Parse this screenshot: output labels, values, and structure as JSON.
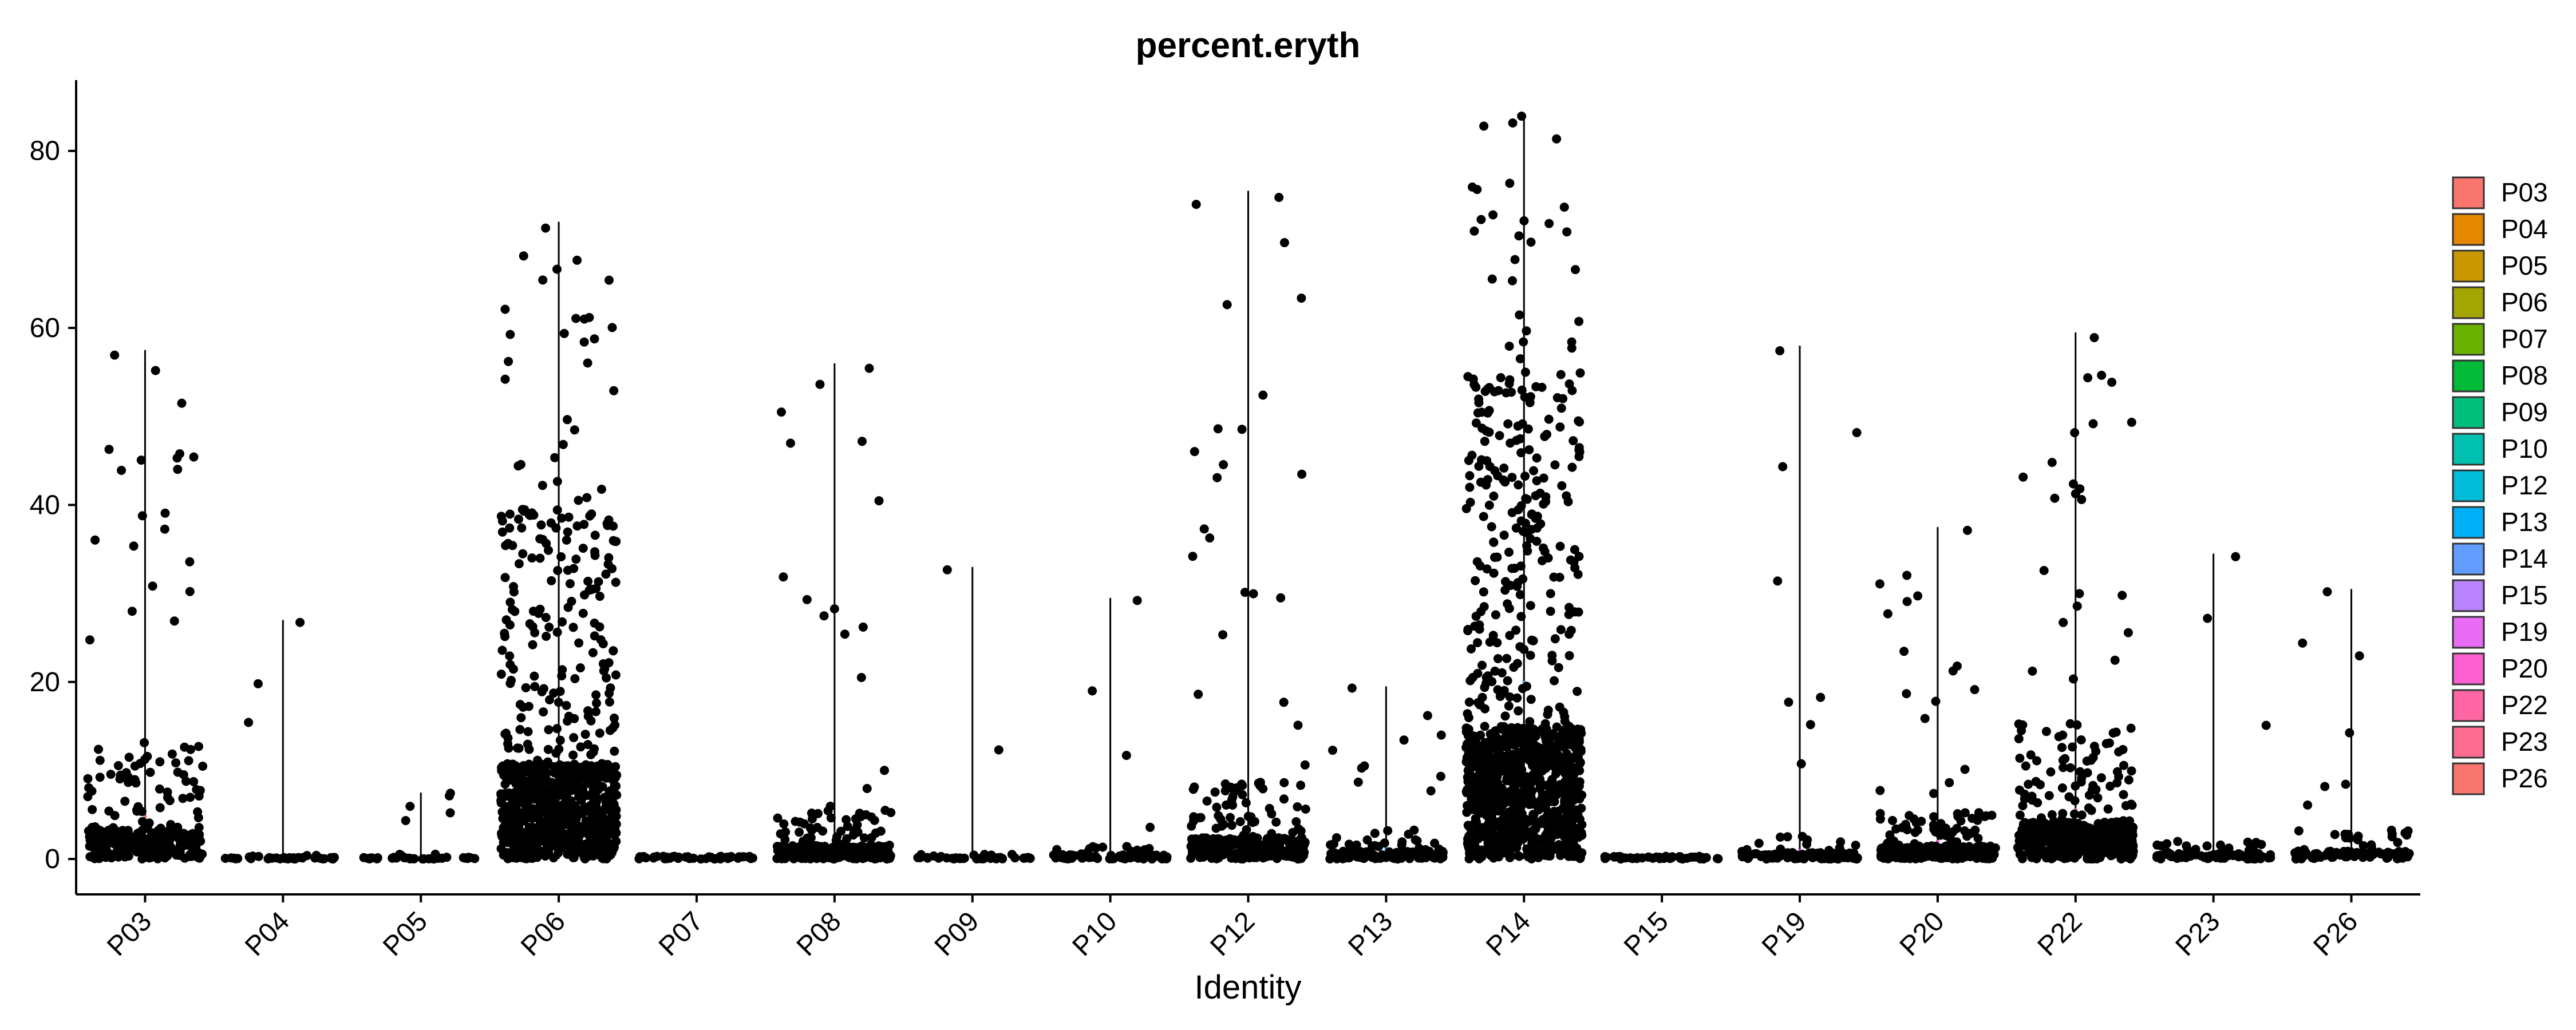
{
  "chart_data": {
    "type": "violin",
    "title": "percent.eryth",
    "xlabel": "Identity",
    "ylabel": "",
    "ylim": [
      -4,
      88
    ],
    "yticks": [
      0,
      20,
      40,
      60,
      80
    ],
    "legend_position": "right",
    "grid": false,
    "points": "jittered cells, black",
    "categories": [
      "P03",
      "P04",
      "P05",
      "P06",
      "P07",
      "P08",
      "P09",
      "P10",
      "P12",
      "P13",
      "P14",
      "P15",
      "P19",
      "P20",
      "P22",
      "P23",
      "P26"
    ],
    "colors": [
      "#F8766D",
      "#E58700",
      "#C99800",
      "#A3A500",
      "#6BB100",
      "#00BA38",
      "#00BF7D",
      "#00C0AF",
      "#00BCD8",
      "#00B0F6",
      "#619CFF",
      "#B983FF",
      "#E76BF3",
      "#FD61D1",
      "#FF67A4",
      "#FF6C91",
      "#F8766D"
    ],
    "legend_entries": [
      "P03",
      "P04",
      "P05",
      "P06",
      "P07",
      "P08",
      "P09",
      "P10",
      "P12",
      "P13",
      "P14",
      "P15",
      "P19",
      "P20",
      "P22",
      "P23",
      "P26"
    ],
    "legend_colors": [
      "#F8766D",
      "#E58700",
      "#C99800",
      "#A3A500",
      "#6BB100",
      "#00BA38",
      "#00BF7D",
      "#00C0AF",
      "#00BCD8",
      "#00B0F6",
      "#619CFF",
      "#B983FF",
      "#E76BF3",
      "#FD61D1",
      "#FF67A4",
      "#FF6C91",
      "#F8766D"
    ],
    "series_max": [
      57.5,
      27,
      7.5,
      72,
      0.3,
      56,
      33,
      29.5,
      75.5,
      19.5,
      84,
      0.3,
      58,
      37.5,
      59.5,
      34.5,
      30.5
    ],
    "series_density": [
      320,
      40,
      40,
      900,
      50,
      280,
      45,
      80,
      300,
      150,
      1100,
      50,
      130,
      300,
      450,
      90,
      120
    ],
    "series_spread": [
      6,
      0.3,
      0.3,
      18,
      0,
      2.5,
      0.3,
      0.8,
      4,
      1.5,
      25,
      0,
      1.2,
      2.5,
      7,
      1,
      1.5
    ]
  }
}
